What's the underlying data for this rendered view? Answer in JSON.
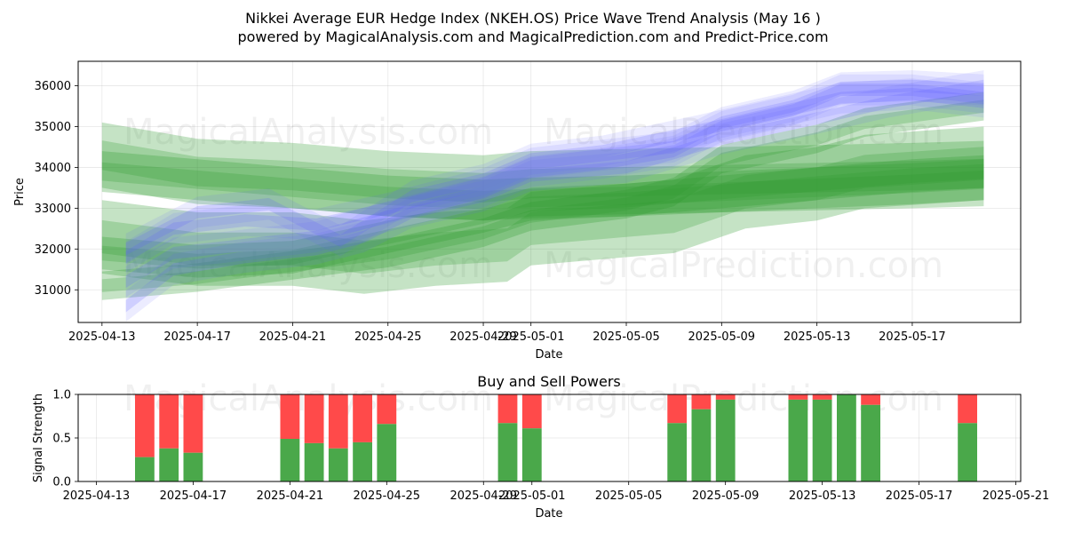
{
  "title_line1": "Nikkei Average EUR Hedge Index (NKEH.OS) Price Wave Trend Analysis (May 16 )",
  "title_line2": "powered by MagicalAnalysis.com and MagicalPrediction.com and Predict-Price.com",
  "watermarks": [
    "MagicalAnalysis.com",
    "MagicalPrediction.com"
  ],
  "chart_data": [
    {
      "type": "area",
      "name": "price-wave-chart",
      "xlabel": "Date",
      "ylabel": "Price",
      "x_ticks": [
        "2025-04-13",
        "2025-04-17",
        "2025-04-21",
        "2025-04-25",
        "2025-04-29",
        "2025-05-01",
        "2025-05-05",
        "2025-05-09",
        "2025-05-13",
        "2025-05-17"
      ],
      "y_ticks": [
        31000,
        32000,
        33000,
        34000,
        35000,
        36000
      ],
      "xlim": [
        "2025-04-12",
        "2025-05-21"
      ],
      "ylim": [
        30200,
        36600
      ],
      "grid": true,
      "blue_color": "#6060ff",
      "green_color": "#2e9a2e",
      "blue_bands": [
        {
          "x": [
            "2025-04-14",
            "2025-04-16",
            "2025-04-19",
            "2025-04-22",
            "2025-04-25",
            "2025-04-29",
            "2025-05-01",
            "2025-05-04",
            "2025-05-07",
            "2025-05-09",
            "2025-05-12",
            "2025-05-14",
            "2025-05-17",
            "2025-05-20"
          ],
          "y": [
            31200,
            31900,
            32100,
            32300,
            32800,
            33400,
            33900,
            34100,
            34400,
            35000,
            35400,
            35900,
            35900,
            35700
          ]
        },
        {
          "x": [
            "2025-04-14",
            "2025-04-16",
            "2025-04-19",
            "2025-04-22",
            "2025-04-25",
            "2025-04-29",
            "2025-05-01",
            "2025-05-04",
            "2025-05-07",
            "2025-05-09",
            "2025-05-12",
            "2025-05-14",
            "2025-05-17",
            "2025-05-20"
          ],
          "y": [
            31800,
            32500,
            32700,
            32600,
            33000,
            33600,
            34100,
            34300,
            34500,
            35100,
            35500,
            35950,
            36000,
            35900
          ]
        },
        {
          "x": [
            "2025-04-14",
            "2025-04-16",
            "2025-04-19",
            "2025-04-22",
            "2025-04-24",
            "2025-04-26",
            "2025-04-29",
            "2025-05-01",
            "2025-05-05",
            "2025-05-09",
            "2025-05-13",
            "2025-05-16",
            "2025-05-20"
          ],
          "y": [
            30600,
            31500,
            31800,
            32000,
            32300,
            32900,
            33300,
            33800,
            34000,
            34700,
            35200,
            35600,
            36000
          ]
        },
        {
          "x": [
            "2025-04-14",
            "2025-04-17",
            "2025-04-20",
            "2025-04-23",
            "2025-04-26",
            "2025-04-29",
            "2025-05-01",
            "2025-05-04",
            "2025-05-08",
            "2025-05-11",
            "2025-05-14",
            "2025-05-17",
            "2025-05-20"
          ],
          "y": [
            32000,
            32900,
            33100,
            32200,
            33300,
            33700,
            34200,
            34400,
            34900,
            35300,
            35700,
            35800,
            35600
          ]
        }
      ],
      "green_bands": [
        {
          "x": [
            "2025-04-13",
            "2025-04-17",
            "2025-04-21",
            "2025-04-25",
            "2025-04-29",
            "2025-05-01",
            "2025-05-05",
            "2025-05-09",
            "2025-05-13",
            "2025-05-17",
            "2025-05-20"
          ],
          "y": [
            34300,
            33900,
            33800,
            33600,
            33500,
            33600,
            33650,
            33700,
            33750,
            33800,
            33850
          ],
          "width": 1600
        },
        {
          "x": [
            "2025-04-13",
            "2025-04-17",
            "2025-04-21",
            "2025-04-25",
            "2025-04-29",
            "2025-05-01",
            "2025-05-05",
            "2025-05-09",
            "2025-05-13",
            "2025-05-17",
            "2025-05-20"
          ],
          "y": [
            33900,
            33700,
            33500,
            33300,
            33200,
            33250,
            33300,
            33400,
            33500,
            33600,
            33700
          ],
          "width": 1000
        },
        {
          "x": [
            "2025-04-13",
            "2025-04-17",
            "2025-04-21",
            "2025-04-24",
            "2025-04-27",
            "2025-04-30",
            "2025-05-01",
            "2025-05-05",
            "2025-05-07",
            "2025-05-10",
            "2025-05-13",
            "2025-05-15",
            "2025-05-20"
          ],
          "y": [
            32300,
            32000,
            32000,
            31800,
            32000,
            32100,
            32500,
            32700,
            32800,
            33400,
            33600,
            33900,
            34100
          ],
          "width": 1800
        },
        {
          "x": [
            "2025-04-13",
            "2025-04-17",
            "2025-04-21",
            "2025-04-25",
            "2025-04-29",
            "2025-05-01",
            "2025-05-05",
            "2025-05-09",
            "2025-05-13",
            "2025-05-17",
            "2025-05-20"
          ],
          "y": [
            31900,
            31700,
            31800,
            32300,
            32800,
            33100,
            33200,
            33400,
            33600,
            33800,
            33900
          ],
          "width": 800
        },
        {
          "x": [
            "2025-04-13",
            "2025-04-17",
            "2025-04-21",
            "2025-04-25",
            "2025-04-29",
            "2025-05-01",
            "2025-05-05",
            "2025-05-07",
            "2025-05-09",
            "2025-05-13",
            "2025-05-15",
            "2025-05-20"
          ],
          "y": [
            31100,
            31300,
            31600,
            31900,
            32400,
            32800,
            33100,
            33400,
            34200,
            34700,
            35100,
            35500
          ],
          "width": 700
        }
      ]
    },
    {
      "type": "bar",
      "name": "buy-sell-powers-chart",
      "title": "Buy and Sell Powers",
      "xlabel": "Date",
      "ylabel": "Signal Strength",
      "x_ticks": [
        "2025-04-13",
        "2025-04-17",
        "2025-04-21",
        "2025-04-25",
        "2025-04-29",
        "2025-05-01",
        "2025-05-05",
        "2025-05-09",
        "2025-05-13",
        "2025-05-17",
        "2025-05-21"
      ],
      "y_ticks": [
        "0.0",
        "0.5",
        "1.0"
      ],
      "xlim": [
        "2025-04-12",
        "2025-05-21"
      ],
      "ylim": [
        0,
        1
      ],
      "grid": true,
      "buy_color": "#4aa84a",
      "sell_color": "#ff4a4a",
      "dates": [
        "2025-04-15",
        "2025-04-16",
        "2025-04-17",
        "2025-04-21",
        "2025-04-22",
        "2025-04-23",
        "2025-04-24",
        "2025-04-25",
        "2025-04-30",
        "2025-05-01",
        "2025-05-07",
        "2025-05-08",
        "2025-05-09",
        "2025-05-12",
        "2025-05-13",
        "2025-05-14",
        "2025-05-15",
        "2025-05-19"
      ],
      "buy": [
        0.28,
        0.38,
        0.33,
        0.49,
        0.44,
        0.38,
        0.45,
        0.66,
        0.67,
        0.61,
        0.67,
        0.83,
        0.94,
        0.94,
        0.94,
        1.0,
        0.88,
        0.67
      ]
    }
  ]
}
